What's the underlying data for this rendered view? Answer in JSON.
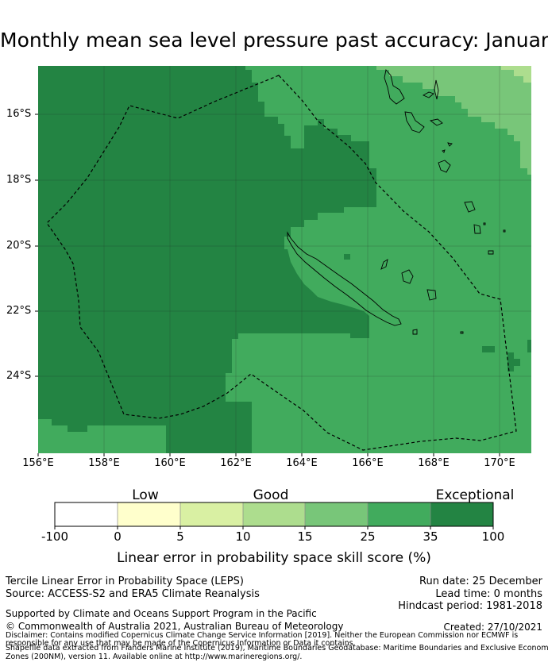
{
  "title": "Monthly mean sea level pressure past accuracy: January",
  "map": {
    "lon_range": [
      156,
      171
    ],
    "lat_range": [
      -26.1,
      -14.6
    ],
    "x_ticks": [
      "156°E",
      "158°E",
      "160°E",
      "162°E",
      "164°E",
      "166°E",
      "168°E",
      "170°E"
    ],
    "y_ticks": [
      "16°S",
      "18°S",
      "20°S",
      "22°S",
      "24°S"
    ],
    "region_outline": "New Caledonia EEZ (dashed)",
    "colors": {
      "class_25_35": "#41ab5d",
      "class_35_100": "#238443",
      "class_15_25": "#78c679",
      "class_10_15": "#addd8e",
      "land_outline": "#000000",
      "gridline": "#222222"
    }
  },
  "colorbar": {
    "categories": [
      {
        "label": "Low",
        "position": "0-5"
      },
      {
        "label": "Good",
        "position": "10-25"
      },
      {
        "label": "Exceptional",
        "position": "35-100"
      }
    ],
    "ticks": [
      "-100",
      "0",
      "5",
      "10",
      "15",
      "25",
      "35",
      "100"
    ],
    "bins": [
      {
        "range": "-100 to 0",
        "color": "#ffffff"
      },
      {
        "range": "0 to 5",
        "color": "#ffffcc"
      },
      {
        "range": "5 to 10",
        "color": "#d9f0a3"
      },
      {
        "range": "10 to 15",
        "color": "#addd8e"
      },
      {
        "range": "15 to 25",
        "color": "#78c679"
      },
      {
        "range": "25 to 35",
        "color": "#41ab5d"
      },
      {
        "range": "35 to 100",
        "color": "#238443"
      }
    ],
    "label": "Linear error in probability space skill score (%)"
  },
  "footer": {
    "method": "Tercile Linear Error in Probability Space (LEPS)",
    "source": "Source: ACCESS-S2 and ERA5 Climate Reanalysis",
    "run_date": "Run date: 25 December",
    "lead_time": "Lead time: 0 months",
    "hindcast": "Hindcast period: 1981-2018",
    "support": "Supported by Climate and Oceans Support Program in the Pacific",
    "copyright": "© Commonwealth of Australia 2021, Australian Bureau of Meteorology",
    "created": "Created: 27/10/2021",
    "disclaimer_1": "Disclaimer: Contains modified Copernicus Climate Change Service Information [2019]. Neither the European Commission nor ECMWF is",
    "disclaimer_2": "responsible for any use that may be made of the Copernicus Information or Data it contains.",
    "disclaimer_3": "Shapefile data extracted from Flanders Marine Institute (2019), Maritime Boundaries Geodatabase: Maritime Boundaries and Exclusive Economic",
    "disclaimer_4": "Zones (200NM), version 11. Available online at http://www.marineregions.org/."
  }
}
